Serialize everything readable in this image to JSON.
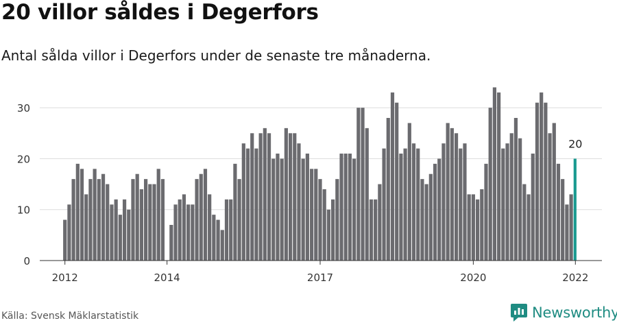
{
  "title": "20 villor såldes i Degerfors",
  "subtitle": "Antal sålda villor i Degerfors under de senaste tre månaderna.",
  "source": "Källa: Svensk Mäklarstatistik",
  "brand": "Newsworthy",
  "colors": {
    "bar": "#6b6b6f",
    "highlight": "#1a9a90",
    "grid": "#dcdcdc",
    "brand": "#1f8c82"
  },
  "chart_data": {
    "type": "bar",
    "title": "20 villor såldes i Degerfors",
    "xlabel": "",
    "ylabel": "",
    "ylim": [
      0,
      35
    ],
    "y_ticks": [
      0,
      10,
      20,
      30
    ],
    "x_ticks": [
      {
        "label": "2012",
        "index": 0
      },
      {
        "label": "2014",
        "index": 24
      },
      {
        "label": "2017",
        "index": 60
      },
      {
        "label": "2020",
        "index": 96
      },
      {
        "label": "2022",
        "index": 120
      }
    ],
    "start": "2012-01",
    "frequency": "monthly",
    "annotation": {
      "index": 120,
      "label": "20"
    },
    "values": [
      8,
      11,
      16,
      19,
      18,
      13,
      16,
      18,
      16,
      17,
      15,
      11,
      12,
      9,
      12,
      10,
      16,
      17,
      14,
      16,
      15,
      15,
      18,
      16,
      0,
      7,
      11,
      12,
      13,
      11,
      11,
      16,
      17,
      18,
      13,
      9,
      8,
      6,
      12,
      12,
      19,
      16,
      23,
      22,
      25,
      22,
      25,
      26,
      25,
      20,
      21,
      20,
      26,
      25,
      25,
      23,
      20,
      21,
      18,
      18,
      16,
      14,
      10,
      12,
      16,
      21,
      21,
      21,
      20,
      30,
      30,
      26,
      12,
      12,
      15,
      22,
      28,
      33,
      31,
      21,
      22,
      27,
      23,
      22,
      16,
      15,
      17,
      19,
      20,
      23,
      27,
      26,
      25,
      22,
      23,
      13,
      13,
      12,
      14,
      19,
      30,
      34,
      33,
      22,
      23,
      25,
      28,
      24,
      15,
      13,
      21,
      31,
      33,
      31,
      25,
      27,
      19,
      16,
      11,
      13,
      20
    ]
  }
}
